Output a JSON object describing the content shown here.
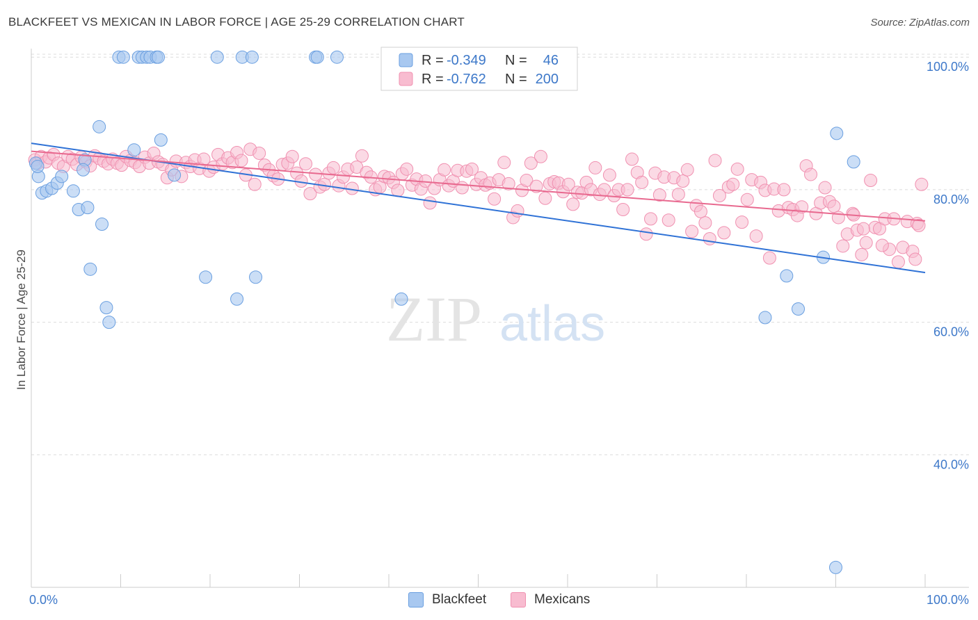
{
  "title": "BLACKFEET VS MEXICAN IN LABOR FORCE | AGE 25-29 CORRELATION CHART",
  "source": "Source: ZipAtlas.com",
  "watermark": {
    "zip": "ZIP",
    "atlas": "atlas"
  },
  "colors": {
    "blue_fill": "#a8c8f0",
    "blue_stroke": "#6a9fe0",
    "blue_line": "#2f72d6",
    "pink_fill": "#f8bcd0",
    "pink_stroke": "#f090b0",
    "pink_line": "#e8698f",
    "tick_text": "#3d78c9",
    "grid": "#dcdcdc"
  },
  "legend": {
    "rows": [
      {
        "r_label": "R =",
        "r_value": "-0.349",
        "n_label": "N =",
        "n_value": "46"
      },
      {
        "r_label": "R =",
        "r_value": "-0.762",
        "n_label": "N =",
        "n_value": "200"
      }
    ]
  },
  "bottom_legend": [
    "Blackfeet",
    "Mexicans"
  ],
  "chart_data": {
    "type": "scatter",
    "title": "BLACKFEET VS MEXICAN IN LABOR FORCE | AGE 25-29 CORRELATION CHART",
    "xlabel": "",
    "ylabel": "In Labor Force | Age 25-29",
    "xlim": [
      0,
      100
    ],
    "ylim": [
      20,
      102
    ],
    "x_tick_labels": [
      "0.0%",
      "100.0%"
    ],
    "y_ticks": [
      40,
      60,
      80,
      100
    ],
    "y_tick_labels": [
      "40.0%",
      "60.0%",
      "80.0%",
      "100.0%"
    ],
    "grid": true,
    "legend_position": "top-center",
    "series": [
      {
        "name": "Blackfeet",
        "r": -0.349,
        "n": 46,
        "trend": {
          "x": [
            0,
            100
          ],
          "y": [
            87.0,
            67.5
          ]
        },
        "points": [
          [
            0.5,
            84.0
          ],
          [
            0.8,
            82.0
          ],
          [
            0.7,
            83.5
          ],
          [
            1.2,
            79.5
          ],
          [
            1.7,
            79.8
          ],
          [
            2.3,
            80.2
          ],
          [
            2.9,
            81.0
          ],
          [
            3.4,
            82.0
          ],
          [
            4.7,
            79.8
          ],
          [
            5.3,
            77.0
          ],
          [
            6.0,
            84.5
          ],
          [
            5.8,
            83.0
          ],
          [
            6.3,
            77.3
          ],
          [
            6.6,
            68.0
          ],
          [
            7.6,
            89.5
          ],
          [
            7.9,
            74.8
          ],
          [
            8.4,
            62.2
          ],
          [
            8.7,
            60.0
          ],
          [
            9.8,
            100.0
          ],
          [
            10.3,
            100.0
          ],
          [
            11.5,
            86.0
          ],
          [
            12.0,
            100.0
          ],
          [
            12.4,
            100.0
          ],
          [
            12.9,
            100.0
          ],
          [
            13.3,
            100.0
          ],
          [
            14.0,
            100.0
          ],
          [
            14.5,
            87.5
          ],
          [
            14.2,
            100.0
          ],
          [
            16.0,
            82.2
          ],
          [
            19.5,
            66.8
          ],
          [
            20.8,
            100.0
          ],
          [
            23.0,
            63.5
          ],
          [
            23.6,
            100.0
          ],
          [
            24.7,
            100.0
          ],
          [
            25.1,
            66.8
          ],
          [
            31.8,
            100.0
          ],
          [
            32.0,
            100.0
          ],
          [
            34.2,
            100.0
          ],
          [
            41.4,
            63.5
          ],
          [
            82.1,
            60.7
          ],
          [
            84.5,
            67.0
          ],
          [
            85.8,
            62.0
          ],
          [
            88.6,
            69.8
          ],
          [
            90.1,
            88.5
          ],
          [
            92.0,
            84.2
          ],
          [
            90.0,
            23.0
          ]
        ]
      },
      {
        "name": "Mexicans",
        "r": -0.762,
        "n": 200,
        "trend": {
          "x": [
            0,
            100
          ],
          "y": [
            85.8,
            75.3
          ]
        },
        "points": [
          [
            0.4,
            84.5
          ],
          [
            0.7,
            84.0
          ],
          [
            1.1,
            85.0
          ],
          [
            1.6,
            84.2
          ],
          [
            2.0,
            84.8
          ],
          [
            2.5,
            85.3
          ],
          [
            3.0,
            84.0
          ],
          [
            3.6,
            83.5
          ],
          [
            4.1,
            85.0
          ],
          [
            4.6,
            84.6
          ],
          [
            5.1,
            83.8
          ],
          [
            5.6,
            84.9
          ],
          [
            6.1,
            84.2
          ],
          [
            6.6,
            83.6
          ],
          [
            7.1,
            85.1
          ],
          [
            7.6,
            84.7
          ],
          [
            8.1,
            84.3
          ],
          [
            8.6,
            83.9
          ],
          [
            9.1,
            84.6
          ],
          [
            9.6,
            84.0
          ],
          [
            10.1,
            83.7
          ],
          [
            10.6,
            85.0
          ],
          [
            11.1,
            84.4
          ],
          [
            11.6,
            84.1
          ],
          [
            12.1,
            83.5
          ],
          [
            12.7,
            84.9
          ],
          [
            13.2,
            84.0
          ],
          [
            13.7,
            85.5
          ],
          [
            14.2,
            84.2
          ],
          [
            14.7,
            83.8
          ],
          [
            15.2,
            81.8
          ],
          [
            15.7,
            83.0
          ],
          [
            16.2,
            84.3
          ],
          [
            16.8,
            82.0
          ],
          [
            17.3,
            84.1
          ],
          [
            17.8,
            83.5
          ],
          [
            18.3,
            84.5
          ],
          [
            18.8,
            83.2
          ],
          [
            19.3,
            84.6
          ],
          [
            19.9,
            82.8
          ],
          [
            20.4,
            83.4
          ],
          [
            20.9,
            85.3
          ],
          [
            21.4,
            83.9
          ],
          [
            22.0,
            84.8
          ],
          [
            22.5,
            84.1
          ],
          [
            23.0,
            85.6
          ],
          [
            23.5,
            84.4
          ],
          [
            24.0,
            82.2
          ],
          [
            24.5,
            86.1
          ],
          [
            25.0,
            80.8
          ],
          [
            25.5,
            85.5
          ],
          [
            26.1,
            83.7
          ],
          [
            26.6,
            83.0
          ],
          [
            27.1,
            82.1
          ],
          [
            27.6,
            81.6
          ],
          [
            28.1,
            83.8
          ],
          [
            28.7,
            84.0
          ],
          [
            29.2,
            85.0
          ],
          [
            29.7,
            82.5
          ],
          [
            30.2,
            81.3
          ],
          [
            30.7,
            83.9
          ],
          [
            31.2,
            79.4
          ],
          [
            31.8,
            82.3
          ],
          [
            32.3,
            80.4
          ],
          [
            32.8,
            80.8
          ],
          [
            33.3,
            82.5
          ],
          [
            33.8,
            83.3
          ],
          [
            34.4,
            80.6
          ],
          [
            34.9,
            81.9
          ],
          [
            35.4,
            83.1
          ],
          [
            35.9,
            80.2
          ],
          [
            36.4,
            83.4
          ],
          [
            37.0,
            85.1
          ],
          [
            37.5,
            82.6
          ],
          [
            38.0,
            81.9
          ],
          [
            38.5,
            80.0
          ],
          [
            39.0,
            80.4
          ],
          [
            39.5,
            82.0
          ],
          [
            40.0,
            81.8
          ],
          [
            40.5,
            81.1
          ],
          [
            41.0,
            79.9
          ],
          [
            41.5,
            82.4
          ],
          [
            42.0,
            83.1
          ],
          [
            42.6,
            80.7
          ],
          [
            43.1,
            81.6
          ],
          [
            43.6,
            80.1
          ],
          [
            44.1,
            81.3
          ],
          [
            44.6,
            78.0
          ],
          [
            45.1,
            80.2
          ],
          [
            45.7,
            81.5
          ],
          [
            46.2,
            83.0
          ],
          [
            46.7,
            80.6
          ],
          [
            47.2,
            81.3
          ],
          [
            47.7,
            82.9
          ],
          [
            48.2,
            80.3
          ],
          [
            48.7,
            82.8
          ],
          [
            49.3,
            83.1
          ],
          [
            49.8,
            80.8
          ],
          [
            50.3,
            81.8
          ],
          [
            50.8,
            80.7
          ],
          [
            51.3,
            81.0
          ],
          [
            51.8,
            78.6
          ],
          [
            52.3,
            81.5
          ],
          [
            52.9,
            84.1
          ],
          [
            53.4,
            80.9
          ],
          [
            53.9,
            75.8
          ],
          [
            54.4,
            76.8
          ],
          [
            54.9,
            79.9
          ],
          [
            55.4,
            81.4
          ],
          [
            55.9,
            84.0
          ],
          [
            56.5,
            80.5
          ],
          [
            57.0,
            85.0
          ],
          [
            57.5,
            78.7
          ],
          [
            58.0,
            80.9
          ],
          [
            58.5,
            81.2
          ],
          [
            59.0,
            81.0
          ],
          [
            59.5,
            79.7
          ],
          [
            60.1,
            80.8
          ],
          [
            60.6,
            77.8
          ],
          [
            61.1,
            79.6
          ],
          [
            61.6,
            79.5
          ],
          [
            62.1,
            81.1
          ],
          [
            62.6,
            80.0
          ],
          [
            63.1,
            83.3
          ],
          [
            63.6,
            79.3
          ],
          [
            64.1,
            80.0
          ],
          [
            64.7,
            82.2
          ],
          [
            65.2,
            79.1
          ],
          [
            65.7,
            80.0
          ],
          [
            66.2,
            77.0
          ],
          [
            66.7,
            80.0
          ],
          [
            67.2,
            84.6
          ],
          [
            67.8,
            82.6
          ],
          [
            68.3,
            81.1
          ],
          [
            68.8,
            73.3
          ],
          [
            69.3,
            75.6
          ],
          [
            69.8,
            82.5
          ],
          [
            70.3,
            79.2
          ],
          [
            70.8,
            81.9
          ],
          [
            71.3,
            75.4
          ],
          [
            71.9,
            81.8
          ],
          [
            72.4,
            79.3
          ],
          [
            72.9,
            81.3
          ],
          [
            73.4,
            83.0
          ],
          [
            73.9,
            73.7
          ],
          [
            74.4,
            77.6
          ],
          [
            74.9,
            76.7
          ],
          [
            75.4,
            75.0
          ],
          [
            75.9,
            72.6
          ],
          [
            76.5,
            84.4
          ],
          [
            77.0,
            79.1
          ],
          [
            77.5,
            73.5
          ],
          [
            78.0,
            80.4
          ],
          [
            78.5,
            80.8
          ],
          [
            79.0,
            83.1
          ],
          [
            79.5,
            75.1
          ],
          [
            80.1,
            78.5
          ],
          [
            80.6,
            81.5
          ],
          [
            81.1,
            73.0
          ],
          [
            81.6,
            81.1
          ],
          [
            82.1,
            79.9
          ],
          [
            82.6,
            69.7
          ],
          [
            83.1,
            80.1
          ],
          [
            83.6,
            76.8
          ],
          [
            84.2,
            80.0
          ],
          [
            84.7,
            77.3
          ],
          [
            85.2,
            77.0
          ],
          [
            85.7,
            76.1
          ],
          [
            86.2,
            77.4
          ],
          [
            86.7,
            83.6
          ],
          [
            87.2,
            82.3
          ],
          [
            87.8,
            76.4
          ],
          [
            88.3,
            78.0
          ],
          [
            88.8,
            80.3
          ],
          [
            89.3,
            78.2
          ],
          [
            89.8,
            77.5
          ],
          [
            90.3,
            75.8
          ],
          [
            90.8,
            71.5
          ],
          [
            91.3,
            73.3
          ],
          [
            91.9,
            76.4
          ],
          [
            92.4,
            73.9
          ],
          [
            92.9,
            70.2
          ],
          [
            93.4,
            72.0
          ],
          [
            93.9,
            81.4
          ],
          [
            94.4,
            74.3
          ],
          [
            94.9,
            74.1
          ],
          [
            95.5,
            75.6
          ],
          [
            96.0,
            71.0
          ],
          [
            96.5,
            75.6
          ],
          [
            97.0,
            69.1
          ],
          [
            97.5,
            71.3
          ],
          [
            98.0,
            75.2
          ],
          [
            98.6,
            70.7
          ],
          [
            99.1,
            74.9
          ],
          [
            99.6,
            80.8
          ],
          [
            98.9,
            69.5
          ],
          [
            99.3,
            74.6
          ],
          [
            95.2,
            71.6
          ],
          [
            93.1,
            74.1
          ],
          [
            92.0,
            76.2
          ]
        ]
      }
    ]
  }
}
